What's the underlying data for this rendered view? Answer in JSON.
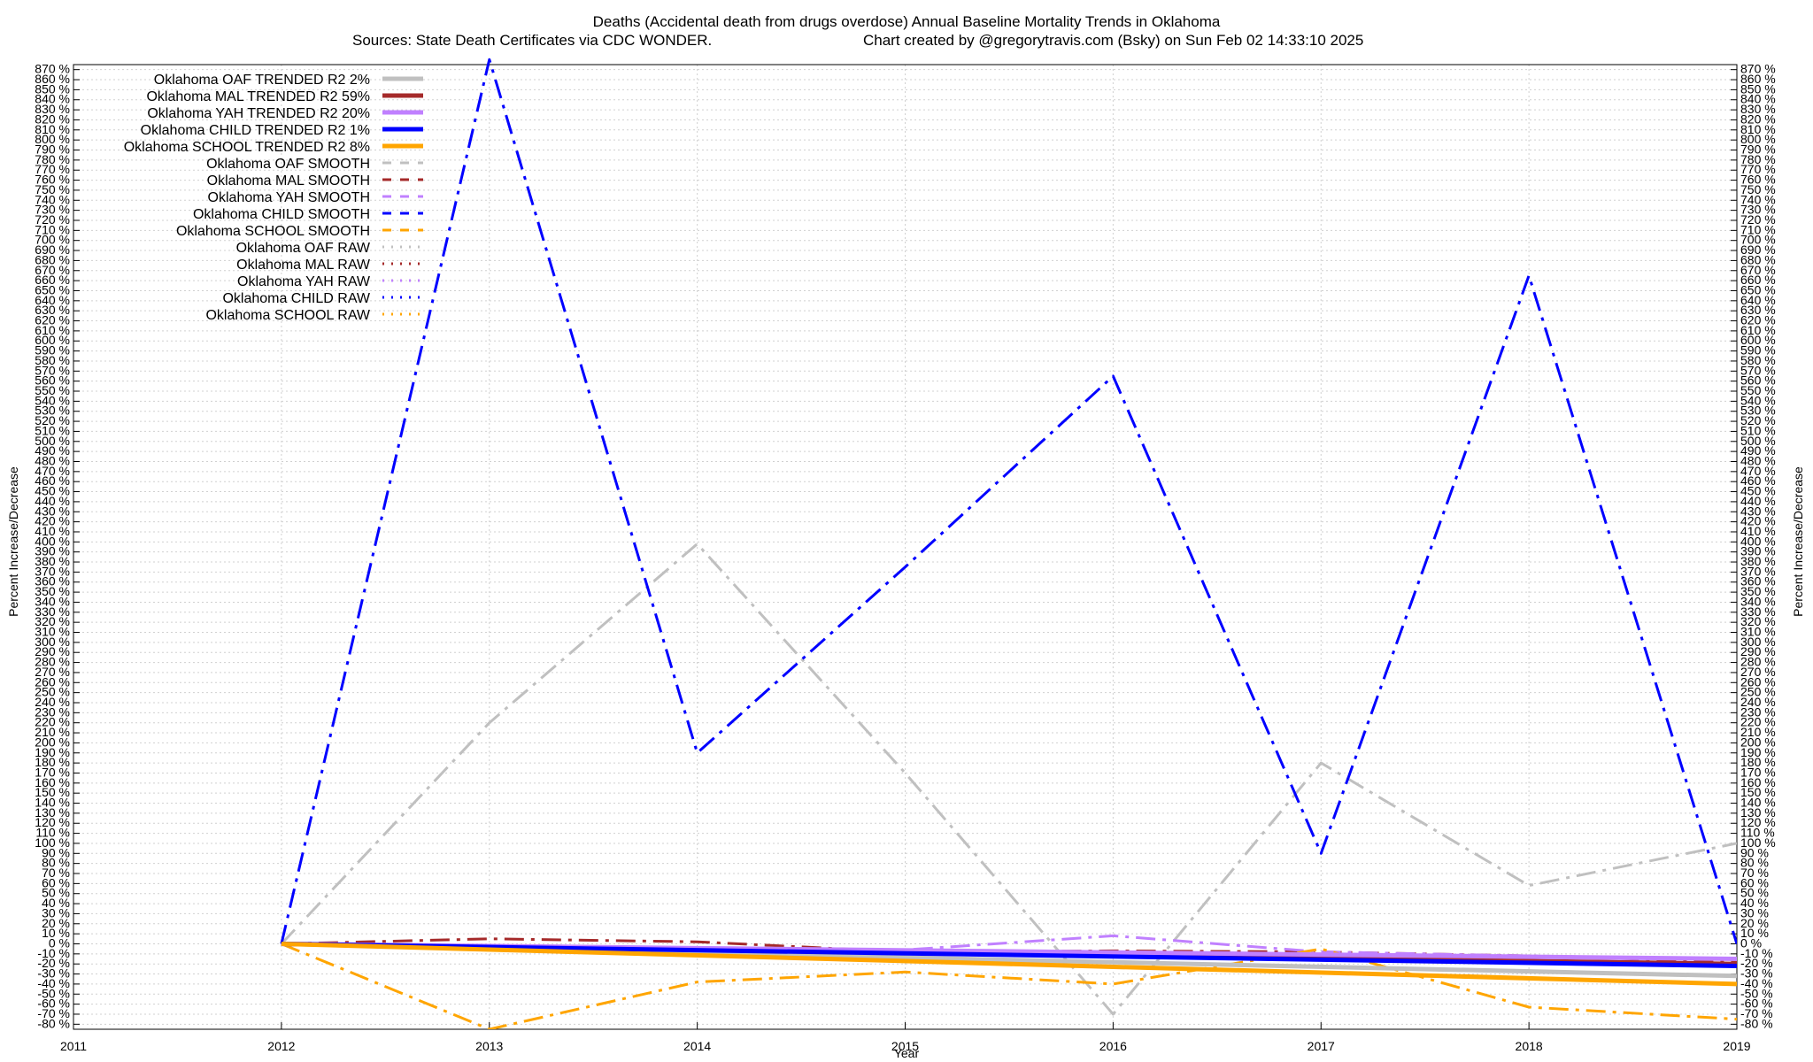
{
  "chart_data": {
    "type": "line",
    "title": "Deaths (Accidental death from drugs overdose)  Annual Baseline Mortality Trends in Oklahoma",
    "subtitle_left": "Sources: State Death Certificates via CDC WONDER.",
    "subtitle_right": "Chart created by @gregorytravis.com (Bsky) on Sun Feb 02 14:33:10 2025",
    "xlabel": "Year",
    "ylabel": "Percent Increase/Decrease",
    "y2label": "Percent Increase/Decrease",
    "xlim": [
      2011,
      2019
    ],
    "ylim": [
      -85,
      875
    ],
    "x_ticks": [
      2011,
      2012,
      2013,
      2014,
      2015,
      2016,
      2017,
      2018,
      2019
    ],
    "y_tick_step": 10,
    "y_tick_suffix": " %",
    "grid": true,
    "legend_position": "top-left",
    "series": [
      {
        "name": "Oklahoma OAF TRENDED R2  2%",
        "role": "trend",
        "color": "#c0c0c0",
        "x": [
          2012,
          2019
        ],
        "values": [
          0,
          -32
        ]
      },
      {
        "name": "Oklahoma MAL TRENDED R2  59%",
        "role": "trend",
        "color": "#a52a2a",
        "x": [
          2012,
          2019
        ],
        "values": [
          0,
          -20
        ]
      },
      {
        "name": "Oklahoma YAH TRENDED R2  20%",
        "role": "trend",
        "color": "#c080ff",
        "x": [
          2012,
          2019
        ],
        "values": [
          0,
          -15
        ]
      },
      {
        "name": "Oklahoma CHILD TRENDED R2  1%",
        "role": "trend",
        "color": "#0000ff",
        "x": [
          2012,
          2019
        ],
        "values": [
          0,
          -22
        ]
      },
      {
        "name": "Oklahoma SCHOOL TRENDED R2  8%",
        "role": "trend",
        "color": "#ffa500",
        "x": [
          2012,
          2019
        ],
        "values": [
          0,
          -40
        ]
      },
      {
        "name": "Oklahoma OAF SMOOTH",
        "role": "smooth",
        "color": "#c0c0c0",
        "x": [
          2012,
          2013,
          2014,
          2015,
          2016,
          2017,
          2018,
          2019
        ],
        "values": [
          0,
          220,
          398,
          170,
          -70,
          180,
          58,
          100
        ]
      },
      {
        "name": "Oklahoma MAL SMOOTH",
        "role": "smooth",
        "color": "#a52a2a",
        "x": [
          2012,
          2013,
          2014,
          2015,
          2016,
          2017,
          2018,
          2019
        ],
        "values": [
          0,
          5,
          2,
          -8,
          -7,
          -8,
          -12,
          -18
        ]
      },
      {
        "name": "Oklahoma YAH SMOOTH",
        "role": "smooth",
        "color": "#c080ff",
        "x": [
          2012,
          2013,
          2014,
          2015,
          2016,
          2017,
          2018,
          2019
        ],
        "values": [
          0,
          -3,
          -8,
          -6,
          8,
          -8,
          -12,
          -15
        ]
      },
      {
        "name": "Oklahoma CHILD SMOOTH",
        "role": "smooth",
        "color": "#0000ff",
        "x": [
          2012,
          2013,
          2014,
          2015,
          2016,
          2017,
          2018,
          2019
        ],
        "values": [
          0,
          880,
          190,
          375,
          565,
          90,
          665,
          0
        ]
      },
      {
        "name": "Oklahoma SCHOOL SMOOTH",
        "role": "smooth",
        "color": "#ffa500",
        "x": [
          2012,
          2013,
          2014,
          2015,
          2016,
          2017,
          2018,
          2019
        ],
        "values": [
          0,
          -85,
          -38,
          -28,
          -40,
          -5,
          -63,
          -75
        ]
      },
      {
        "name": "Oklahoma OAF RAW",
        "role": "raw",
        "color": "#c0c0c0",
        "x": [],
        "values": []
      },
      {
        "name": "Oklahoma MAL RAW",
        "role": "raw",
        "color": "#a52a2a",
        "x": [],
        "values": []
      },
      {
        "name": "Oklahoma YAH RAW",
        "role": "raw",
        "color": "#c080ff",
        "x": [],
        "values": []
      },
      {
        "name": "Oklahoma CHILD RAW",
        "role": "raw",
        "color": "#0000ff",
        "x": [],
        "values": []
      },
      {
        "name": "Oklahoma SCHOOL RAW",
        "role": "raw",
        "color": "#ffa500",
        "x": [],
        "values": []
      }
    ]
  }
}
